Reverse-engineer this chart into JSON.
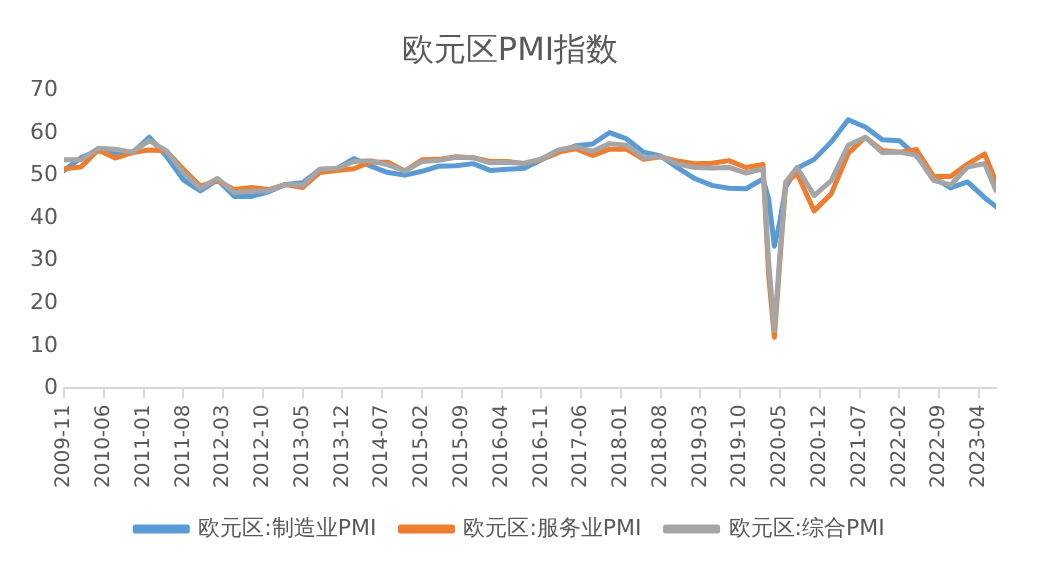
{
  "chart_data": {
    "type": "line",
    "title": "欧元区PMI指数",
    "x": [
      "2009-11",
      "2010-02",
      "2010-05",
      "2010-08",
      "2010-11",
      "2011-02",
      "2011-05",
      "2011-08",
      "2011-11",
      "2012-02",
      "2012-05",
      "2012-08",
      "2012-11",
      "2013-02",
      "2013-05",
      "2013-08",
      "2013-11",
      "2014-02",
      "2014-05",
      "2014-08",
      "2014-11",
      "2015-02",
      "2015-05",
      "2015-08",
      "2015-11",
      "2016-02",
      "2016-05",
      "2016-08",
      "2016-11",
      "2017-02",
      "2017-05",
      "2017-08",
      "2017-11",
      "2018-02",
      "2018-05",
      "2018-08",
      "2018-11",
      "2019-02",
      "2019-05",
      "2019-08",
      "2019-11",
      "2020-02",
      "2020-03",
      "2020-04",
      "2020-05",
      "2020-06",
      "2020-08",
      "2020-11",
      "2021-02",
      "2021-05",
      "2021-08",
      "2021-11",
      "2022-02",
      "2022-05",
      "2022-08",
      "2022-11",
      "2023-02",
      "2023-05",
      "2023-07"
    ],
    "series": [
      {
        "name": "欧元区:制造业PMI",
        "color": "#5b9bd5",
        "values": [
          51.2,
          54.2,
          55.8,
          55.1,
          55.3,
          59.0,
          54.6,
          49.0,
          46.4,
          49.0,
          45.1,
          45.1,
          46.2,
          47.9,
          48.3,
          51.4,
          51.6,
          54.0,
          52.2,
          50.7,
          50.1,
          51.0,
          52.2,
          52.3,
          52.8,
          51.2,
          51.5,
          51.7,
          53.7,
          55.4,
          57.0,
          57.4,
          60.1,
          58.6,
          55.5,
          54.6,
          51.8,
          49.3,
          47.7,
          47.0,
          46.9,
          49.2,
          44.5,
          33.4,
          39.4,
          47.4,
          51.7,
          53.8,
          57.9,
          63.1,
          61.4,
          58.4,
          58.2,
          54.6,
          49.6,
          47.1,
          48.5,
          44.8,
          42.7
        ]
      },
      {
        "name": "欧元区:服务业PMI",
        "color": "#ed7d31",
        "values": [
          51.6,
          52.0,
          56.0,
          54.1,
          55.4,
          56.0,
          55.8,
          51.5,
          47.5,
          48.8,
          46.7,
          47.2,
          46.7,
          47.9,
          47.2,
          50.7,
          51.2,
          51.6,
          53.2,
          53.1,
          51.1,
          53.7,
          53.8,
          54.4,
          54.2,
          53.3,
          53.3,
          52.8,
          53.8,
          55.5,
          56.3,
          54.7,
          56.2,
          56.2,
          53.8,
          54.4,
          53.4,
          52.8,
          52.9,
          53.5,
          51.9,
          52.6,
          26.4,
          12.0,
          30.5,
          48.3,
          50.5,
          41.7,
          45.7,
          55.2,
          59.0,
          55.9,
          55.5,
          56.1,
          49.8,
          49.8,
          52.7,
          55.1,
          48.5
        ]
      },
      {
        "name": "欧元区:综合PMI",
        "color": "#a5a5a5",
        "values": [
          53.7,
          53.7,
          56.4,
          56.2,
          55.5,
          58.2,
          55.8,
          50.7,
          47.0,
          49.3,
          46.0,
          46.3,
          46.5,
          47.9,
          47.7,
          51.5,
          51.7,
          53.3,
          53.5,
          52.5,
          51.1,
          53.3,
          53.6,
          54.3,
          54.2,
          53.0,
          53.1,
          52.9,
          53.9,
          56.0,
          56.8,
          55.7,
          57.5,
          57.1,
          54.1,
          54.5,
          52.7,
          51.9,
          51.8,
          51.9,
          50.6,
          51.6,
          29.7,
          13.6,
          31.9,
          48.5,
          51.9,
          45.3,
          48.8,
          57.1,
          59.0,
          55.4,
          55.5,
          54.8,
          48.9,
          47.8,
          52.0,
          52.8,
          46.5
        ]
      }
    ],
    "xlim": [
      "2009-11",
      "2023-07"
    ],
    "xticks": [
      "2009-11",
      "2010-06",
      "2011-01",
      "2011-08",
      "2012-03",
      "2012-10",
      "2013-05",
      "2013-12",
      "2014-07",
      "2015-02",
      "2015-09",
      "2016-04",
      "2016-11",
      "2017-06",
      "2018-01",
      "2018-08",
      "2019-03",
      "2019-10",
      "2020-05",
      "2020-12",
      "2021-07",
      "2022-02",
      "2022-09",
      "2023-04"
    ],
    "ylim": [
      0,
      70
    ],
    "yticks": [
      0,
      10,
      20,
      30,
      40,
      50,
      60,
      70
    ],
    "grid": false,
    "legend": "bottom",
    "marker": "none",
    "line_style": "solid"
  }
}
